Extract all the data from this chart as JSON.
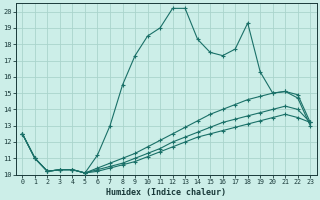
{
  "xlabel": "Humidex (Indice chaleur)",
  "background_color": "#cceee8",
  "grid_color": "#b0d8d0",
  "line_color": "#1a7068",
  "xlim": [
    -0.5,
    23.5
  ],
  "ylim": [
    10,
    20.5
  ],
  "yticks": [
    10,
    11,
    12,
    13,
    14,
    15,
    16,
    17,
    18,
    19,
    20
  ],
  "xticks": [
    0,
    1,
    2,
    3,
    4,
    5,
    6,
    7,
    8,
    9,
    10,
    11,
    12,
    13,
    14,
    15,
    16,
    17,
    18,
    19,
    20,
    21,
    22,
    23
  ],
  "lines": [
    {
      "x": [
        0,
        1,
        2,
        3,
        4,
        5,
        6,
        7,
        8,
        9,
        10,
        11,
        12,
        13,
        14,
        15,
        16,
        17,
        18,
        19,
        20,
        21,
        22,
        23
      ],
      "y": [
        12.5,
        11.0,
        10.2,
        10.3,
        10.3,
        10.1,
        11.2,
        13.0,
        15.5,
        17.3,
        18.5,
        19.0,
        20.2,
        20.2,
        18.3,
        17.5,
        17.3,
        17.7,
        19.3,
        16.3,
        15.0,
        15.1,
        14.7,
        13.0
      ]
    },
    {
      "x": [
        0,
        1,
        2,
        3,
        4,
        5,
        6,
        7,
        8,
        9,
        10,
        11,
        12,
        13,
        14,
        15,
        16,
        17,
        18,
        19,
        20,
        21,
        22,
        23
      ],
      "y": [
        12.5,
        11.0,
        10.2,
        10.3,
        10.3,
        10.1,
        10.4,
        10.7,
        11.0,
        11.3,
        11.7,
        12.1,
        12.5,
        12.9,
        13.3,
        13.7,
        14.0,
        14.3,
        14.6,
        14.8,
        15.0,
        15.1,
        14.9,
        13.2
      ]
    },
    {
      "x": [
        0,
        1,
        2,
        3,
        4,
        5,
        6,
        7,
        8,
        9,
        10,
        11,
        12,
        13,
        14,
        15,
        16,
        17,
        18,
        19,
        20,
        21,
        22,
        23
      ],
      "y": [
        12.5,
        11.0,
        10.2,
        10.3,
        10.3,
        10.1,
        10.3,
        10.5,
        10.7,
        11.0,
        11.3,
        11.6,
        12.0,
        12.3,
        12.6,
        12.9,
        13.2,
        13.4,
        13.6,
        13.8,
        14.0,
        14.2,
        14.0,
        13.2
      ]
    },
    {
      "x": [
        0,
        1,
        2,
        3,
        4,
        5,
        6,
        7,
        8,
        9,
        10,
        11,
        12,
        13,
        14,
        15,
        16,
        17,
        18,
        19,
        20,
        21,
        22,
        23
      ],
      "y": [
        12.5,
        11.0,
        10.2,
        10.3,
        10.3,
        10.1,
        10.2,
        10.4,
        10.6,
        10.8,
        11.1,
        11.4,
        11.7,
        12.0,
        12.3,
        12.5,
        12.7,
        12.9,
        13.1,
        13.3,
        13.5,
        13.7,
        13.5,
        13.2
      ]
    }
  ]
}
